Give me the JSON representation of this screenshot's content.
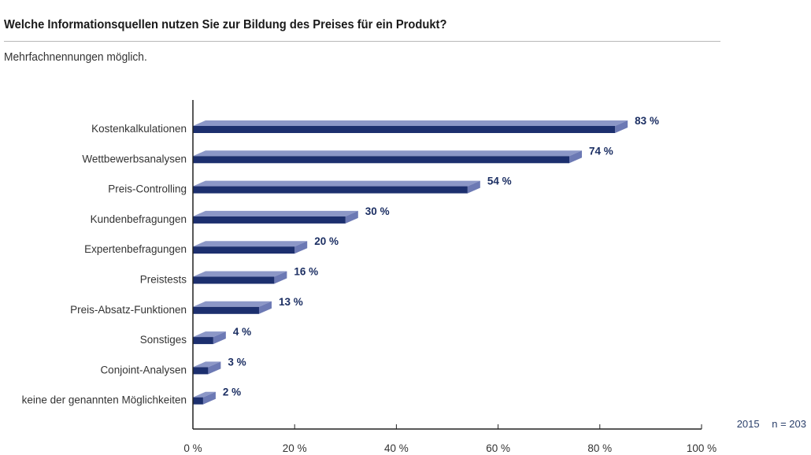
{
  "header": {
    "title": "Welche Informationsquellen nutzen Sie zur Bildung des Preises für ein Produkt?",
    "subtitle": "Mehrfachnennungen möglich."
  },
  "meta": {
    "year": "2015",
    "sample": "n = 203"
  },
  "colors": {
    "bar_front": "#1c2f6e",
    "bar_top": "#8c97c7",
    "bar_side": "#6c79b4",
    "axis": "#222222",
    "value_text": "#1c2f63"
  },
  "chart_data": {
    "type": "bar",
    "orientation": "horizontal",
    "title": "Welche Informationsquellen nutzen Sie zur Bildung des Preises für ein Produkt?",
    "subtitle": "Mehrfachnennungen möglich.",
    "categories": [
      "Kostenkalkulationen",
      "Wettbewerbsanalysen",
      "Preis-Controlling",
      "Kundenbefragungen",
      "Expertenbefragungen",
      "Preistests",
      "Preis-Absatz-Funktionen",
      "Sonstiges",
      "Conjoint-Analysen",
      "keine der genannten Möglichkeiten"
    ],
    "values": [
      83,
      74,
      54,
      30,
      20,
      16,
      13,
      4,
      3,
      2
    ],
    "value_labels": [
      "83 %",
      "74 %",
      "54 %",
      "30 %",
      "20 %",
      "16 %",
      "13 %",
      "4 %",
      "3 %",
      "2 %"
    ],
    "xlim": [
      0,
      100
    ],
    "ticks": [
      0,
      20,
      40,
      60,
      80,
      100
    ],
    "tick_labels": [
      "0 %",
      "20 %",
      "40 %",
      "60 %",
      "80 %",
      "100 %"
    ],
    "grid": false,
    "style": "3d"
  }
}
